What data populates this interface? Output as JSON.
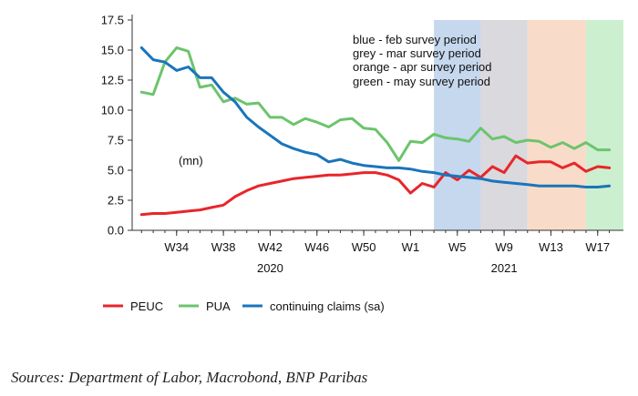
{
  "chart_data": {
    "type": "line",
    "unit_label": "(mn)",
    "ylim": [
      0,
      17.5
    ],
    "y_ticks": [
      "0.0",
      "2.5",
      "5.0",
      "7.5",
      "10.0",
      "12.5",
      "15.0",
      "17.5"
    ],
    "x_tick_labels": [
      {
        "week_index": 3,
        "label": "W34"
      },
      {
        "week_index": 7,
        "label": "W38"
      },
      {
        "week_index": 11,
        "label": "W42"
      },
      {
        "week_index": 15,
        "label": "W46"
      },
      {
        "week_index": 19,
        "label": "W50"
      },
      {
        "week_index": 23,
        "label": "W1"
      },
      {
        "week_index": 27,
        "label": "W5"
      },
      {
        "week_index": 31,
        "label": "W9"
      },
      {
        "week_index": 35,
        "label": "W13"
      },
      {
        "week_index": 39,
        "label": "W17"
      }
    ],
    "year_labels": [
      {
        "week_index": 11,
        "label": "2020"
      },
      {
        "week_index": 31,
        "label": "2021"
      }
    ],
    "x_range": [
      -0.8,
      41.2
    ],
    "survey_periods": [
      {
        "start": 25,
        "end": 29,
        "color": "#c6d8ee",
        "name": "blue"
      },
      {
        "start": 29,
        "end": 33,
        "color": "#d9d9de",
        "name": "grey"
      },
      {
        "start": 33,
        "end": 38,
        "color": "#f8dcc9",
        "name": "orange"
      },
      {
        "start": 38,
        "end": 41.2,
        "color": "#ccefcf",
        "name": "green"
      }
    ],
    "annotations": [
      "blue - feb survey period",
      "grey - mar survey period",
      "orange - apr survey period",
      "green - may survey period"
    ],
    "series": [
      {
        "name": "PEUC",
        "color": "#e8262b",
        "values": [
          1.3,
          1.4,
          1.4,
          1.5,
          1.6,
          1.7,
          1.9,
          2.1,
          2.8,
          3.3,
          3.7,
          3.9,
          4.1,
          4.3,
          4.4,
          4.5,
          4.6,
          4.6,
          4.7,
          4.8,
          4.8,
          4.6,
          4.2,
          3.1,
          3.9,
          3.6,
          4.8,
          4.2,
          5.0,
          4.4,
          5.3,
          4.8,
          6.2,
          5.6,
          5.7,
          5.7,
          5.2,
          5.6,
          4.9,
          5.3,
          5.2
        ]
      },
      {
        "name": "PUA",
        "color": "#6cc46c",
        "values": [
          11.5,
          11.3,
          14.0,
          15.2,
          14.9,
          11.9,
          12.1,
          10.7,
          11.0,
          10.5,
          10.6,
          9.4,
          9.4,
          8.8,
          9.3,
          9.0,
          8.6,
          9.2,
          9.3,
          8.5,
          8.4,
          7.3,
          5.8,
          7.4,
          7.3,
          8.0,
          7.7,
          7.6,
          7.4,
          8.5,
          7.6,
          7.8,
          7.3,
          7.5,
          7.4,
          6.9,
          7.3,
          6.8,
          7.3,
          6.7,
          6.7
        ]
      },
      {
        "name": "continuing claims (sa)",
        "color": "#1a75bb",
        "values": [
          15.2,
          14.2,
          14.0,
          13.3,
          13.6,
          12.7,
          12.7,
          11.5,
          10.7,
          9.4,
          8.6,
          7.9,
          7.2,
          6.8,
          6.5,
          6.3,
          5.7,
          5.9,
          5.6,
          5.4,
          5.3,
          5.2,
          5.2,
          5.1,
          4.9,
          4.8,
          4.6,
          4.5,
          4.4,
          4.3,
          4.1,
          4.0,
          3.9,
          3.8,
          3.7,
          3.7,
          3.7,
          3.7,
          3.6,
          3.6,
          3.7
        ]
      }
    ]
  },
  "legend": [
    {
      "label": "PEUC",
      "color": "#e8262b"
    },
    {
      "label": "PUA",
      "color": "#6cc46c"
    },
    {
      "label": "continuing claims (sa)",
      "color": "#1a75bb"
    }
  ],
  "source": "Sources: Department of Labor, Macrobond, BNP Paribas"
}
